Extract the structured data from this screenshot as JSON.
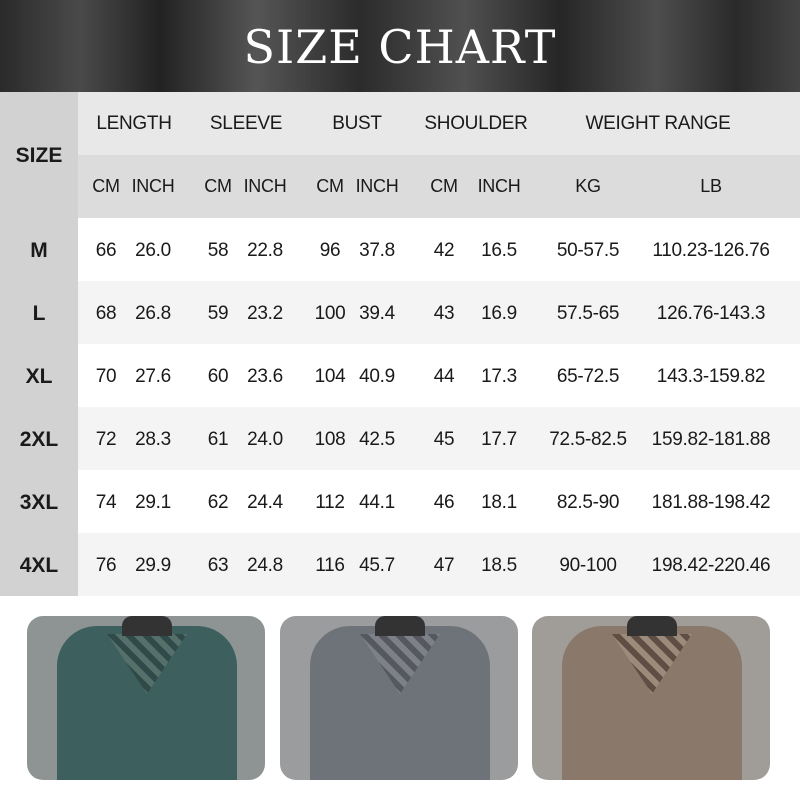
{
  "title": "SIZE CHART",
  "table": {
    "size_label": "SIZE",
    "groups": [
      "LENGTH",
      "SLEEVE",
      "BUST",
      "SHOULDER",
      "WEIGHT RANGE"
    ],
    "units": [
      "CM",
      "INCH",
      "CM",
      "INCH",
      "CM",
      "INCH",
      "CM",
      "INCH",
      "KG",
      "LB"
    ],
    "rows": [
      {
        "size": "M",
        "values": [
          "66",
          "26.0",
          "58",
          "22.8",
          "96",
          "37.8",
          "42",
          "16.5",
          "50-57.5",
          "110.23-126.76"
        ]
      },
      {
        "size": "L",
        "values": [
          "68",
          "26.8",
          "59",
          "23.2",
          "100",
          "39.4",
          "43",
          "16.9",
          "57.5-65",
          "126.76-143.3"
        ]
      },
      {
        "size": "XL",
        "values": [
          "70",
          "27.6",
          "60",
          "23.6",
          "104",
          "40.9",
          "44",
          "17.3",
          "65-72.5",
          "143.3-159.82"
        ]
      },
      {
        "size": "2XL",
        "values": [
          "72",
          "28.3",
          "61",
          "24.0",
          "108",
          "42.5",
          "45",
          "17.7",
          "72.5-82.5",
          "159.82-181.88"
        ]
      },
      {
        "size": "3XL",
        "values": [
          "74",
          "29.1",
          "62",
          "24.4",
          "112",
          "44.1",
          "46",
          "18.1",
          "82.5-90",
          "181.88-198.42"
        ]
      },
      {
        "size": "4XL",
        "values": [
          "76",
          "29.9",
          "63",
          "24.8",
          "116",
          "45.7",
          "47",
          "18.5",
          "90-100",
          "198.42-220.46"
        ]
      }
    ]
  },
  "colors": {
    "variant_1": "#3d5f5d",
    "variant_2": "#6e7379",
    "variant_3": "#8a796b"
  }
}
